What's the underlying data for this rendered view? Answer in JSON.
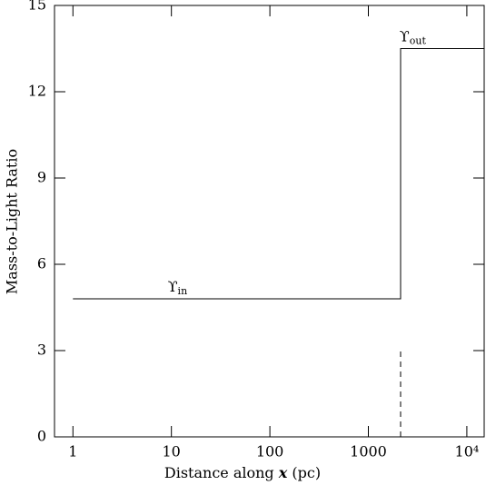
{
  "chart_data": {
    "type": "line",
    "xlabel": {
      "before": "Distance along ",
      "var": "x",
      "after": " (pc)"
    },
    "ylabel": "Mass-to-Light Ratio",
    "xlog": true,
    "xlim": [
      0.65,
      15000
    ],
    "ylim": [
      0,
      15
    ],
    "xticks": [
      1,
      10,
      100,
      1000,
      {
        "value": 10000,
        "label": "10⁴"
      }
    ],
    "yticks": [
      0,
      3,
      6,
      9,
      12,
      15
    ],
    "series": [
      {
        "x": [
          1,
          2125,
          2125,
          15000
        ],
        "values": [
          4.8,
          4.8,
          13.5,
          13.5
        ],
        "color": "#000000",
        "dash": false
      },
      {
        "x": [
          2125,
          2125
        ],
        "values": [
          0,
          3
        ],
        "color": "#000000",
        "dash": true
      }
    ],
    "annotations": [
      {
        "text": "ϒ",
        "sub": "in"
      },
      {
        "text": "ϒ",
        "sub": "out"
      }
    ]
  }
}
